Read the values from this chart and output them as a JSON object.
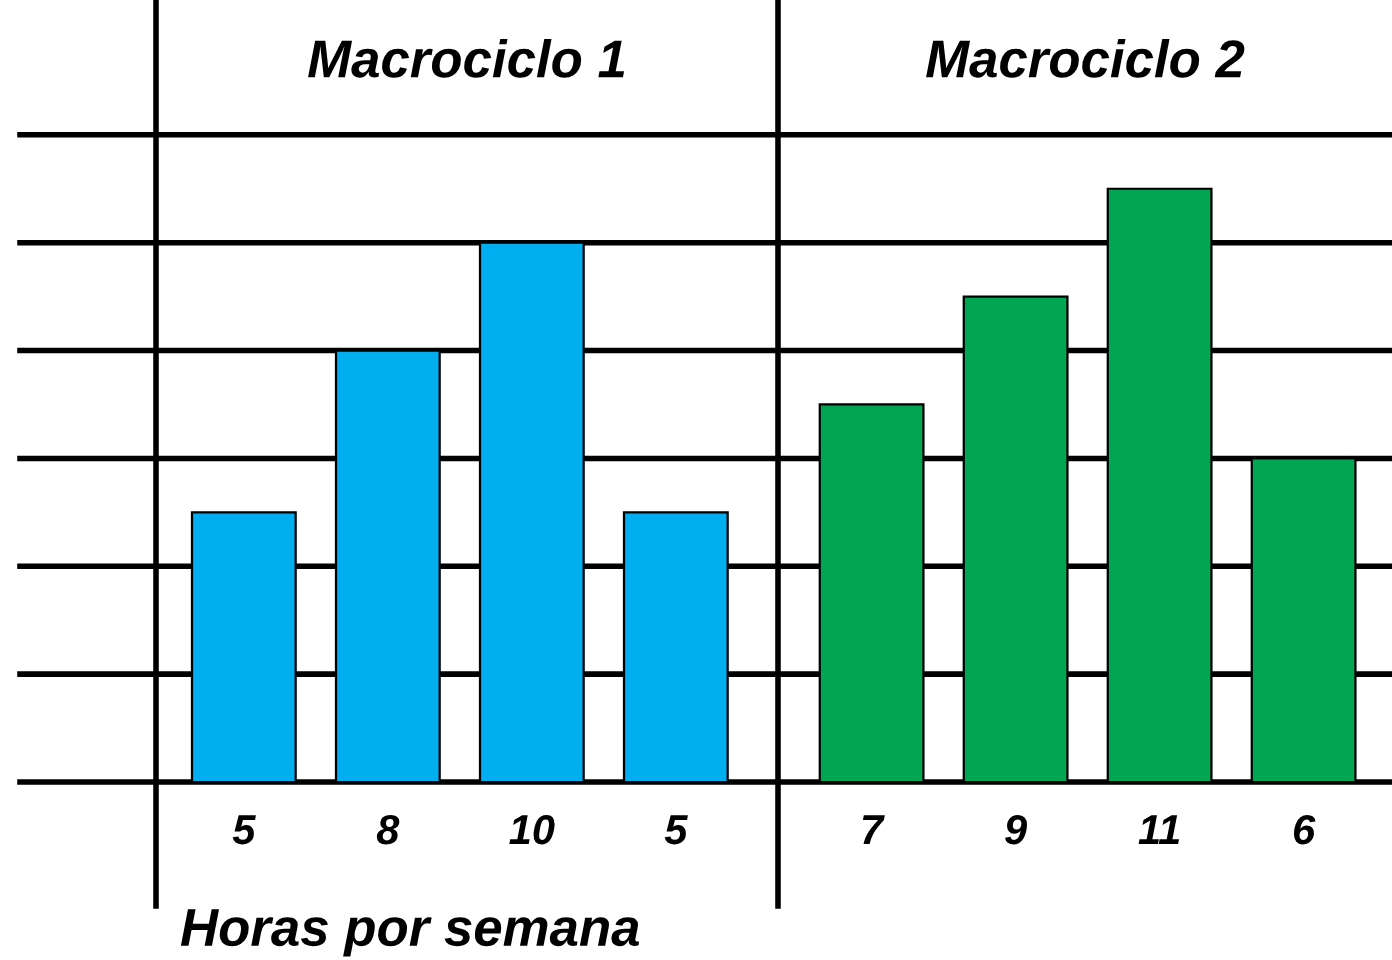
{
  "chart_data": [
    {
      "type": "bar",
      "title": "Macrociclo 1",
      "categories": [
        null,
        null,
        null,
        null
      ],
      "values": [
        5,
        8,
        10,
        5
      ],
      "color": "#00aeef",
      "xlabel": "Horas por semana",
      "data_labels": true,
      "grid": "y",
      "ylim": [
        0,
        14.5
      ],
      "yticks": [
        {
          "value": 0,
          "label": null
        },
        {
          "value": 2,
          "label": null
        },
        {
          "value": 4,
          "label": null
        },
        {
          "value": 6,
          "label": null
        },
        {
          "value": 8,
          "label": null
        },
        {
          "value": 10,
          "label": null
        },
        {
          "value": 12,
          "label": null
        }
      ]
    },
    {
      "type": "bar",
      "title": "Macrociclo 2",
      "categories": [
        null,
        null,
        null,
        null
      ],
      "values": [
        7,
        9,
        11,
        6
      ],
      "color": "#00a651",
      "data_labels": true,
      "grid": "y",
      "ylim": [
        0,
        14.5
      ],
      "yticks": [
        {
          "value": 0,
          "label": null
        },
        {
          "value": 2,
          "label": null
        },
        {
          "value": 4,
          "label": null
        },
        {
          "value": 6,
          "label": null
        },
        {
          "value": 8,
          "label": null
        },
        {
          "value": 10,
          "label": null
        },
        {
          "value": 12,
          "label": null
        }
      ]
    }
  ]
}
